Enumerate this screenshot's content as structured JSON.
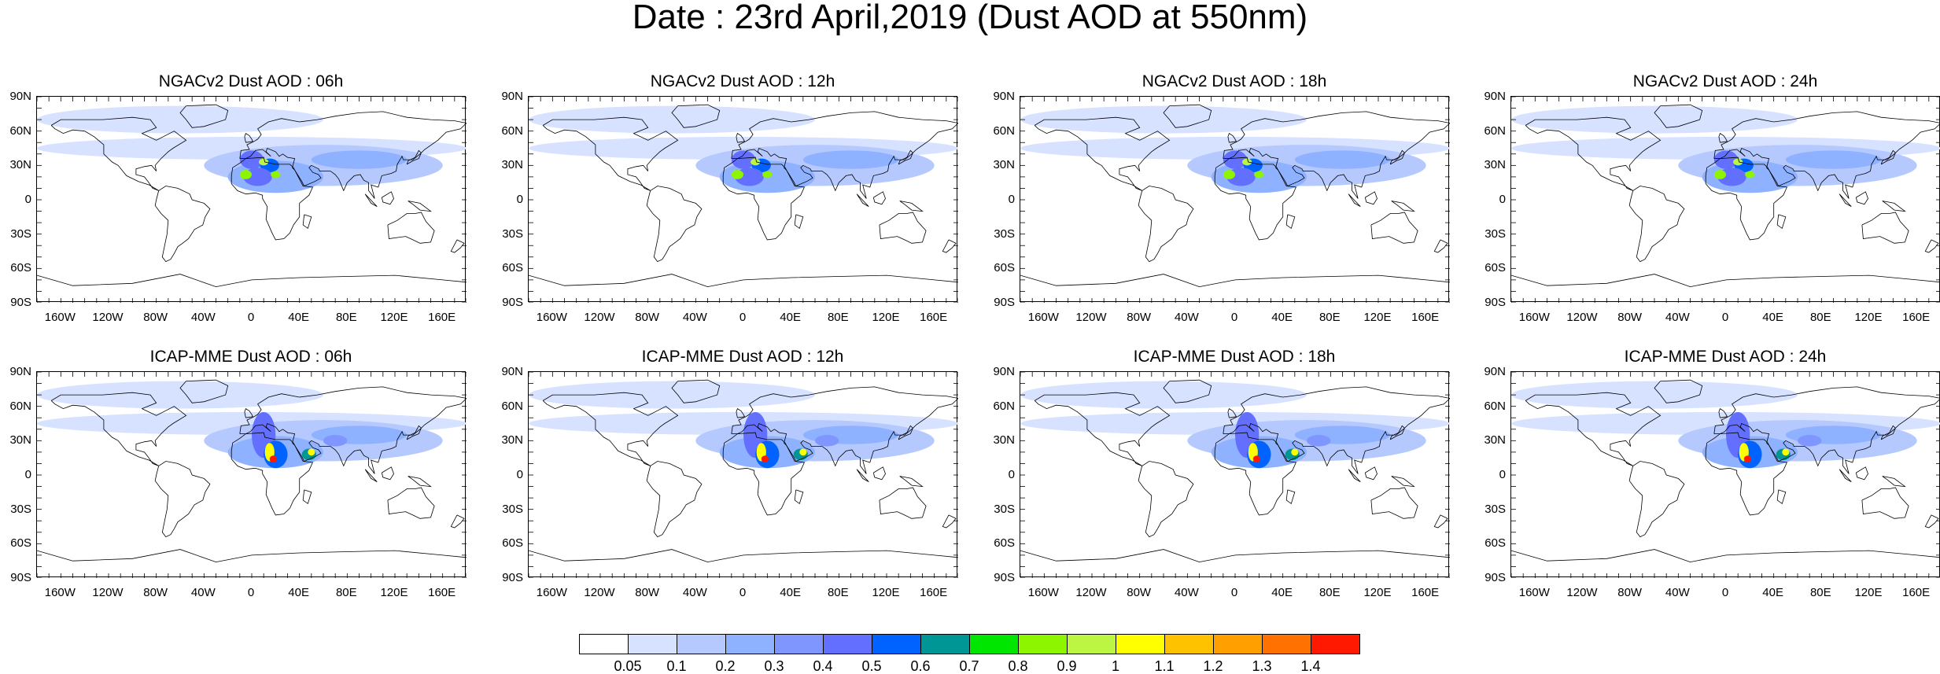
{
  "title": "Date : 23rd April,2019 (Dust AOD at 550nm)",
  "lat_labels": [
    "90N",
    "60N",
    "30N",
    "0",
    "30S",
    "60S",
    "90S"
  ],
  "lon_labels": [
    "160W",
    "120W",
    "80W",
    "40W",
    "0",
    "40E",
    "80E",
    "120E",
    "160E"
  ],
  "panels": [
    {
      "title": "NGACv2 Dust AOD : 06h",
      "model": "NGACv2",
      "hour": "06h"
    },
    {
      "title": "NGACv2 Dust AOD : 12h",
      "model": "NGACv2",
      "hour": "12h"
    },
    {
      "title": "NGACv2 Dust AOD : 18h",
      "model": "NGACv2",
      "hour": "18h"
    },
    {
      "title": "NGACv2 Dust AOD : 24h",
      "model": "NGACv2",
      "hour": "24h"
    },
    {
      "title": "ICAP-MME Dust AOD : 06h",
      "model": "ICAP-MME",
      "hour": "06h"
    },
    {
      "title": "ICAP-MME Dust AOD : 12h",
      "model": "ICAP-MME",
      "hour": "12h"
    },
    {
      "title": "ICAP-MME Dust AOD : 18h",
      "model": "ICAP-MME",
      "hour": "18h"
    },
    {
      "title": "ICAP-MME Dust AOD : 24h",
      "model": "ICAP-MME",
      "hour": "24h"
    }
  ],
  "colorbar": {
    "labels": [
      "0.05",
      "0.1",
      "0.2",
      "0.3",
      "0.4",
      "0.5",
      "0.6",
      "0.7",
      "0.8",
      "0.9",
      "1",
      "1.1",
      "1.2",
      "1.3",
      "1.4"
    ],
    "colors": [
      "#ffffff",
      "#d6e2ff",
      "#b5c9ff",
      "#8eb2ff",
      "#7f96ff",
      "#6370ff",
      "#0063ff",
      "#009696",
      "#00e600",
      "#8df500",
      "#bdf543",
      "#ffff00",
      "#ffc200",
      "#ffa000",
      "#ff7100",
      "#ff1900"
    ]
  }
}
